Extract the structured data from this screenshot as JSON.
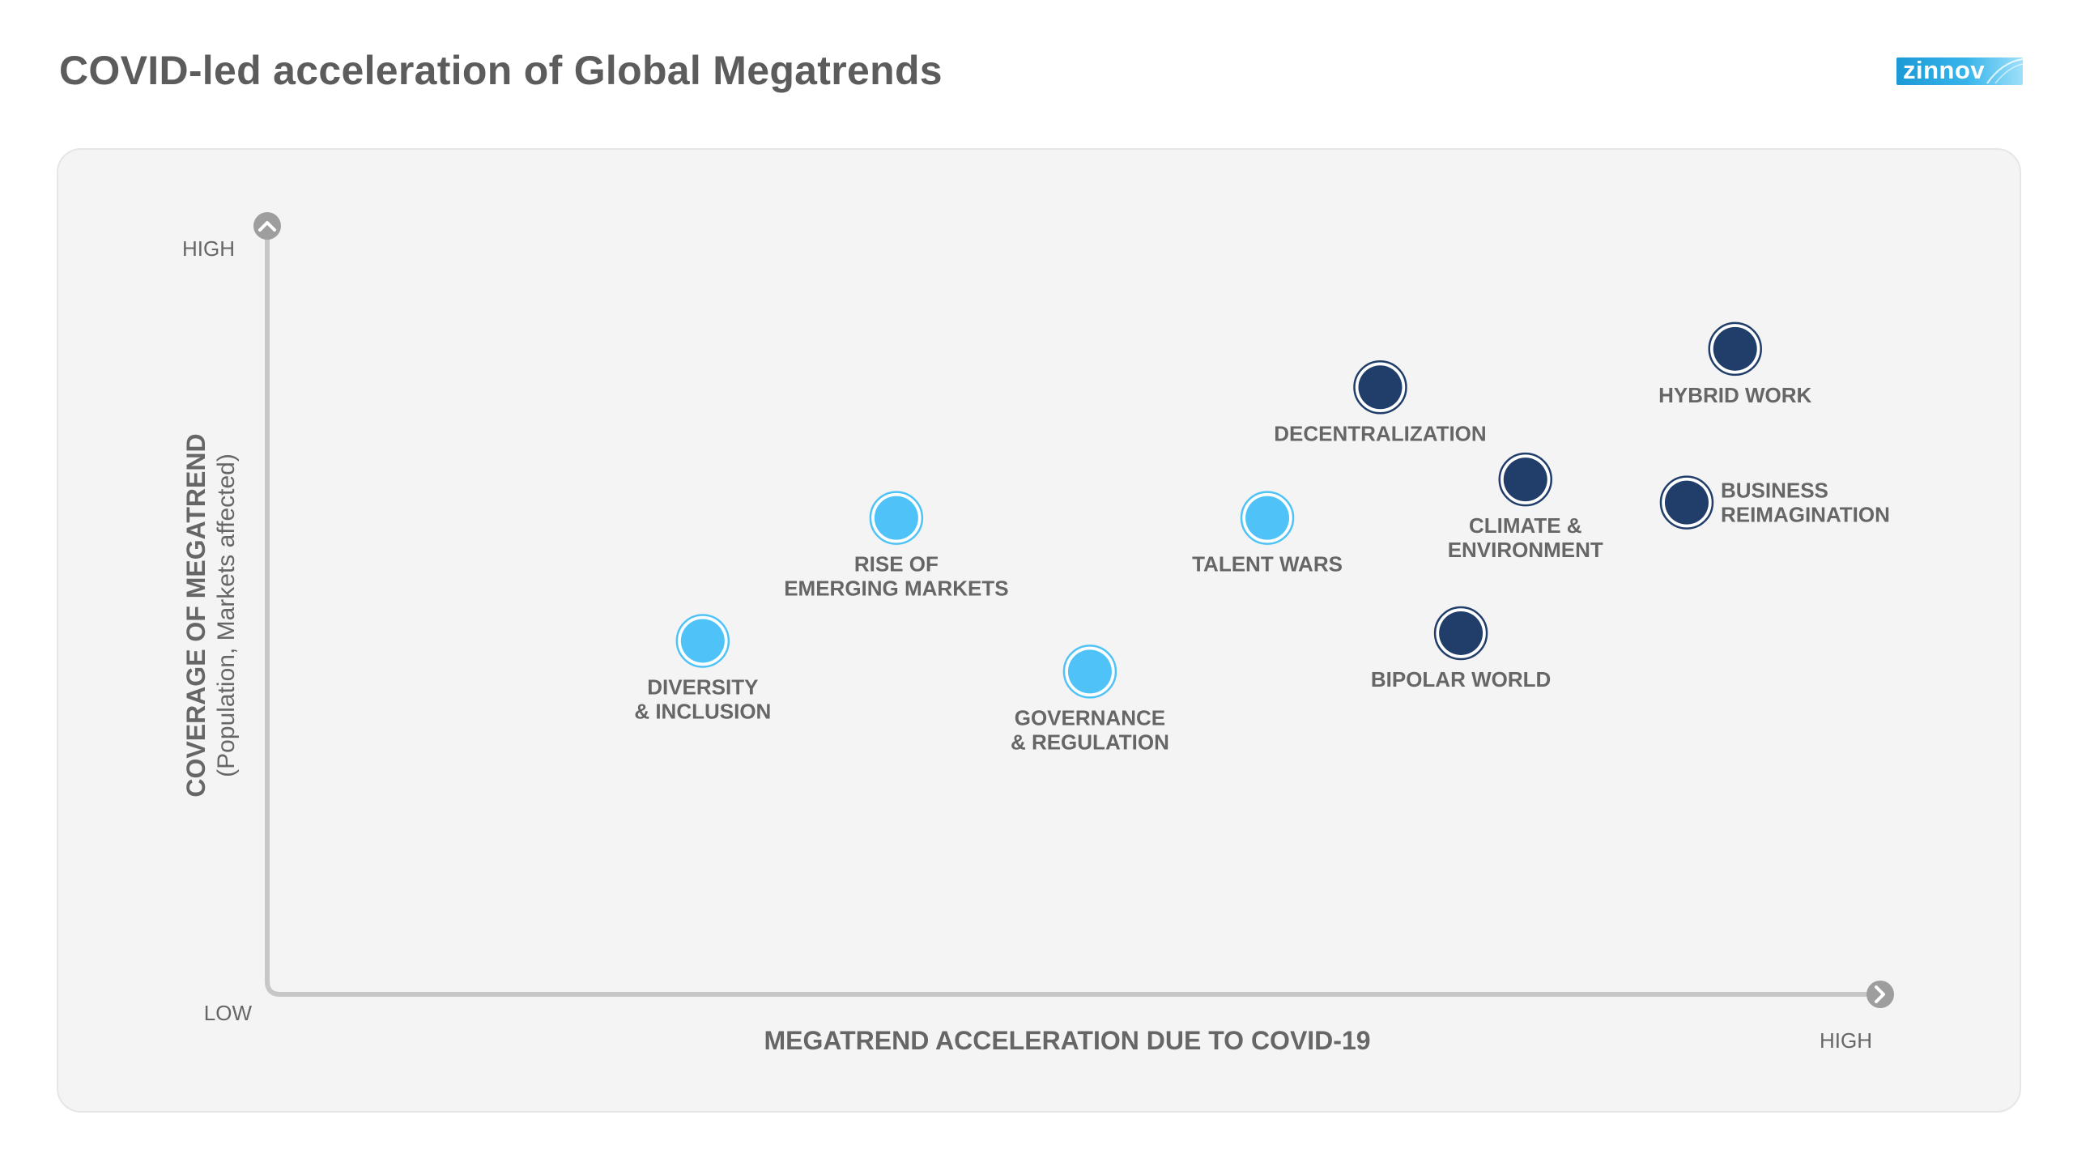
{
  "header": {
    "title": "COVID-led acceleration of Global Megatrends",
    "logo_text": "zinnov"
  },
  "colors": {
    "accelerated_light": "#4fc3f7",
    "accelerated_dark": "#213e6b",
    "axis": "#c7c7c7",
    "axis_cap": "#9e9e9e",
    "text": "#666666",
    "panel": "#f4f4f4"
  },
  "chart_data": {
    "type": "scatter",
    "title": "COVID-led acceleration of Global Megatrends",
    "xlabel": "MEGATREND ACCELERATION DUE TO COVID-19",
    "ylabel": "COVERAGE OF MEGATREND",
    "ylabel_sub": "(Population, Markets affected)",
    "x_low_label": "LOW",
    "x_high_label": "HIGH",
    "y_high_label": "HIGH",
    "xlim": [
      0,
      100
    ],
    "ylim": [
      0,
      100
    ],
    "grid": false,
    "legend": "none",
    "points": [
      {
        "label_lines": [
          "DIVERSITY",
          "& INCLUSION"
        ],
        "x": 27,
        "y": 46,
        "color": "#4fc3f7",
        "label_pos": "below"
      },
      {
        "label_lines": [
          "RISE OF",
          "EMERGING MARKETS"
        ],
        "x": 39,
        "y": 62,
        "color": "#4fc3f7",
        "label_pos": "below"
      },
      {
        "label_lines": [
          "GOVERNANCE",
          "& REGULATION"
        ],
        "x": 51,
        "y": 42,
        "color": "#4fc3f7",
        "label_pos": "below"
      },
      {
        "label_lines": [
          "TALENT WARS"
        ],
        "x": 62,
        "y": 62,
        "color": "#4fc3f7",
        "label_pos": "below"
      },
      {
        "label_lines": [
          "DECENTRALIZATION"
        ],
        "x": 69,
        "y": 79,
        "color": "#213e6b",
        "label_pos": "below"
      },
      {
        "label_lines": [
          "CLIMATE &",
          "ENVIRONMENT"
        ],
        "x": 78,
        "y": 67,
        "color": "#213e6b",
        "label_pos": "below"
      },
      {
        "label_lines": [
          "BIPOLAR WORLD"
        ],
        "x": 74,
        "y": 47,
        "color": "#213e6b",
        "label_pos": "below"
      },
      {
        "label_lines": [
          "HYBRID WORK"
        ],
        "x": 91,
        "y": 84,
        "color": "#213e6b",
        "label_pos": "below"
      },
      {
        "label_lines": [
          "BUSINESS",
          "REIMAGINATION"
        ],
        "x": 88,
        "y": 64,
        "color": "#213e6b",
        "label_pos": "right"
      }
    ]
  }
}
